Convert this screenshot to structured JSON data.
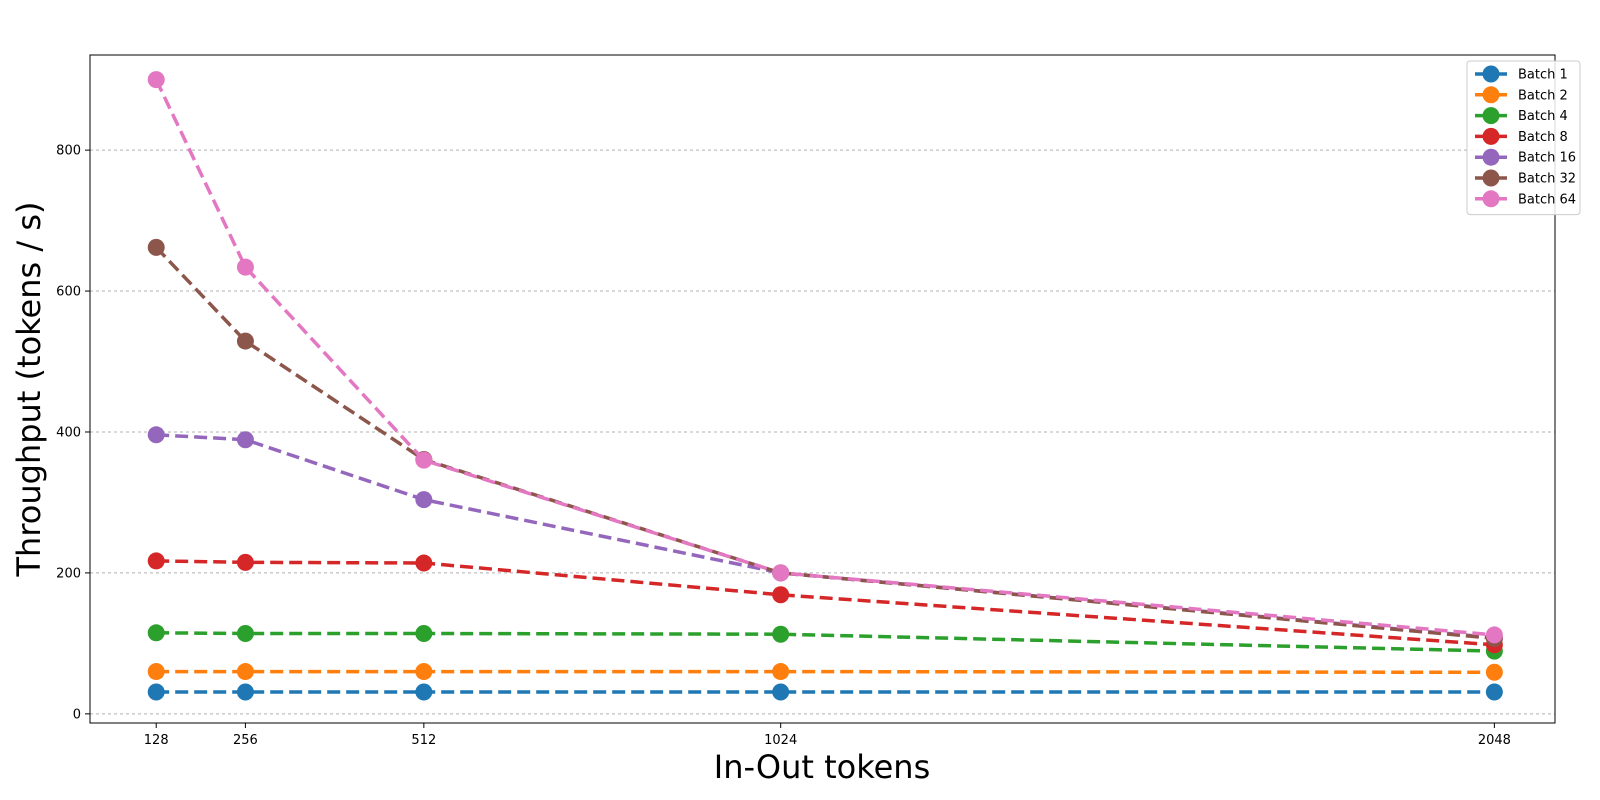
{
  "chart_data": {
    "type": "line",
    "x": [
      128,
      256,
      512,
      1024,
      2048
    ],
    "xticks": [
      "128",
      "256",
      "512",
      "1024",
      "2048"
    ],
    "xlim": [
      33,
      2135
    ],
    "ylim": [
      -13,
      935
    ],
    "yticks": [
      0,
      200,
      400,
      600,
      800
    ],
    "xlabel": "In-Out tokens",
    "ylabel": "Throughput (tokens / s)",
    "title": "",
    "grid": "y-dashed",
    "line_style": "dashed",
    "legend_position": "top-right",
    "series": [
      {
        "name": "Batch 1",
        "color": "#1f77b4",
        "values": [
          31,
          31,
          31,
          31,
          31
        ]
      },
      {
        "name": "Batch 2",
        "color": "#ff7f0e",
        "values": [
          60,
          60,
          60,
          60,
          59
        ]
      },
      {
        "name": "Batch 4",
        "color": "#2ca02c",
        "values": [
          115,
          114,
          114,
          113,
          89
        ]
      },
      {
        "name": "Batch 8",
        "color": "#d62728",
        "values": [
          217,
          215,
          214,
          169,
          98
        ]
      },
      {
        "name": "Batch 16",
        "color": "#9467bd",
        "values": [
          396,
          389,
          304,
          200,
          108
        ]
      },
      {
        "name": "Batch 32",
        "color": "#8c564b",
        "values": [
          662,
          529,
          361,
          200,
          107
        ]
      },
      {
        "name": "Batch 64",
        "color": "#e377c2",
        "values": [
          900,
          634,
          360,
          200,
          112
        ]
      }
    ]
  }
}
